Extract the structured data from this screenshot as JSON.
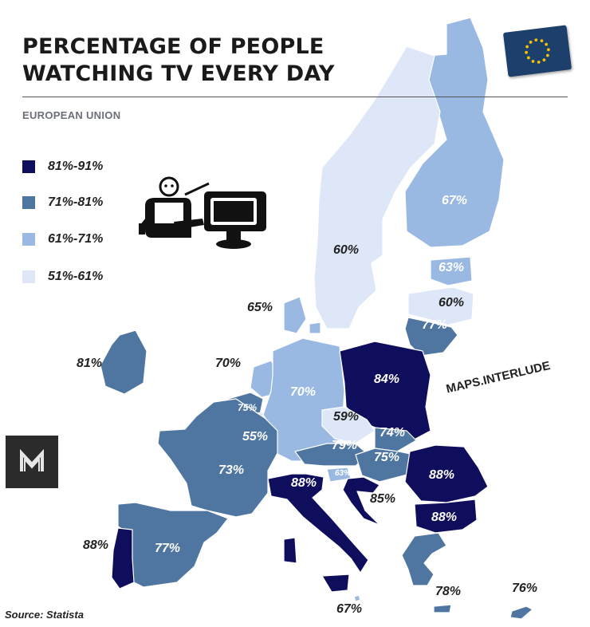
{
  "title_lines": [
    "PERCENTAGE OF PEOPLE",
    "WATCHING TV EVERY DAY"
  ],
  "subtitle": "EUROPEAN UNION",
  "legend": [
    {
      "label": "81%-91%",
      "color": "#0e0e5c"
    },
    {
      "label": "71%-81%",
      "color": "#4f76a1"
    },
    {
      "label": "61%-71%",
      "color": "#99b9e2"
    },
    {
      "label": "51%-61%",
      "color": "#dde7f7"
    }
  ],
  "countries": [
    {
      "id": "finland",
      "value": "67%",
      "color": "#99b9e2"
    },
    {
      "id": "sweden",
      "value": "60%",
      "color": "#dde7f7"
    },
    {
      "id": "estonia",
      "value": "63%",
      "color": "#99b9e2"
    },
    {
      "id": "latvia",
      "value": "60%",
      "color": "#dde7f7"
    },
    {
      "id": "lithuania",
      "value": "77%",
      "color": "#4f76a1"
    },
    {
      "id": "denmark",
      "value": "65%",
      "color": "#99b9e2"
    },
    {
      "id": "ireland",
      "value": "81%",
      "color": "#4f76a1"
    },
    {
      "id": "netherlands",
      "value": "70%",
      "color": "#99b9e2"
    },
    {
      "id": "belgium",
      "value": "75%",
      "color": "#4f76a1"
    },
    {
      "id": "luxembourg",
      "value": "55%",
      "color": "#dde7f7"
    },
    {
      "id": "germany",
      "value": "70%",
      "color": "#99b9e2"
    },
    {
      "id": "poland",
      "value": "84%",
      "color": "#0e0e5c"
    },
    {
      "id": "czechia",
      "value": "59%",
      "color": "#dde7f7"
    },
    {
      "id": "slovakia",
      "value": "74%",
      "color": "#4f76a1"
    },
    {
      "id": "austria",
      "value": "79%",
      "color": "#4f76a1"
    },
    {
      "id": "hungary",
      "value": "75%",
      "color": "#4f76a1"
    },
    {
      "id": "slovenia",
      "value": "63%",
      "color": "#99b9e2"
    },
    {
      "id": "croatia",
      "value": "85%",
      "color": "#0e0e5c"
    },
    {
      "id": "romania",
      "value": "88%",
      "color": "#0e0e5c"
    },
    {
      "id": "bulgaria",
      "value": "88%",
      "color": "#0e0e5c"
    },
    {
      "id": "france",
      "value": "73%",
      "color": "#4f76a1"
    },
    {
      "id": "italy",
      "value": "88%",
      "color": "#0e0e5c"
    },
    {
      "id": "spain",
      "value": "77%",
      "color": "#4f76a1"
    },
    {
      "id": "portugal",
      "value": "88%",
      "color": "#0e0e5c"
    },
    {
      "id": "greece",
      "value": "78%",
      "color": "#4f76a1"
    },
    {
      "id": "malta",
      "value": "67%",
      "color": "#99b9e2"
    },
    {
      "id": "cyprus",
      "value": "76%",
      "color": "#4f76a1"
    }
  ],
  "watermark": "MAPS.INTERLUDE",
  "logo_letter": "M",
  "source": "Source: Statista",
  "flag_color": "#1d3f6b",
  "flag_star_color": "#f2c200",
  "border_color": "#ffffff"
}
